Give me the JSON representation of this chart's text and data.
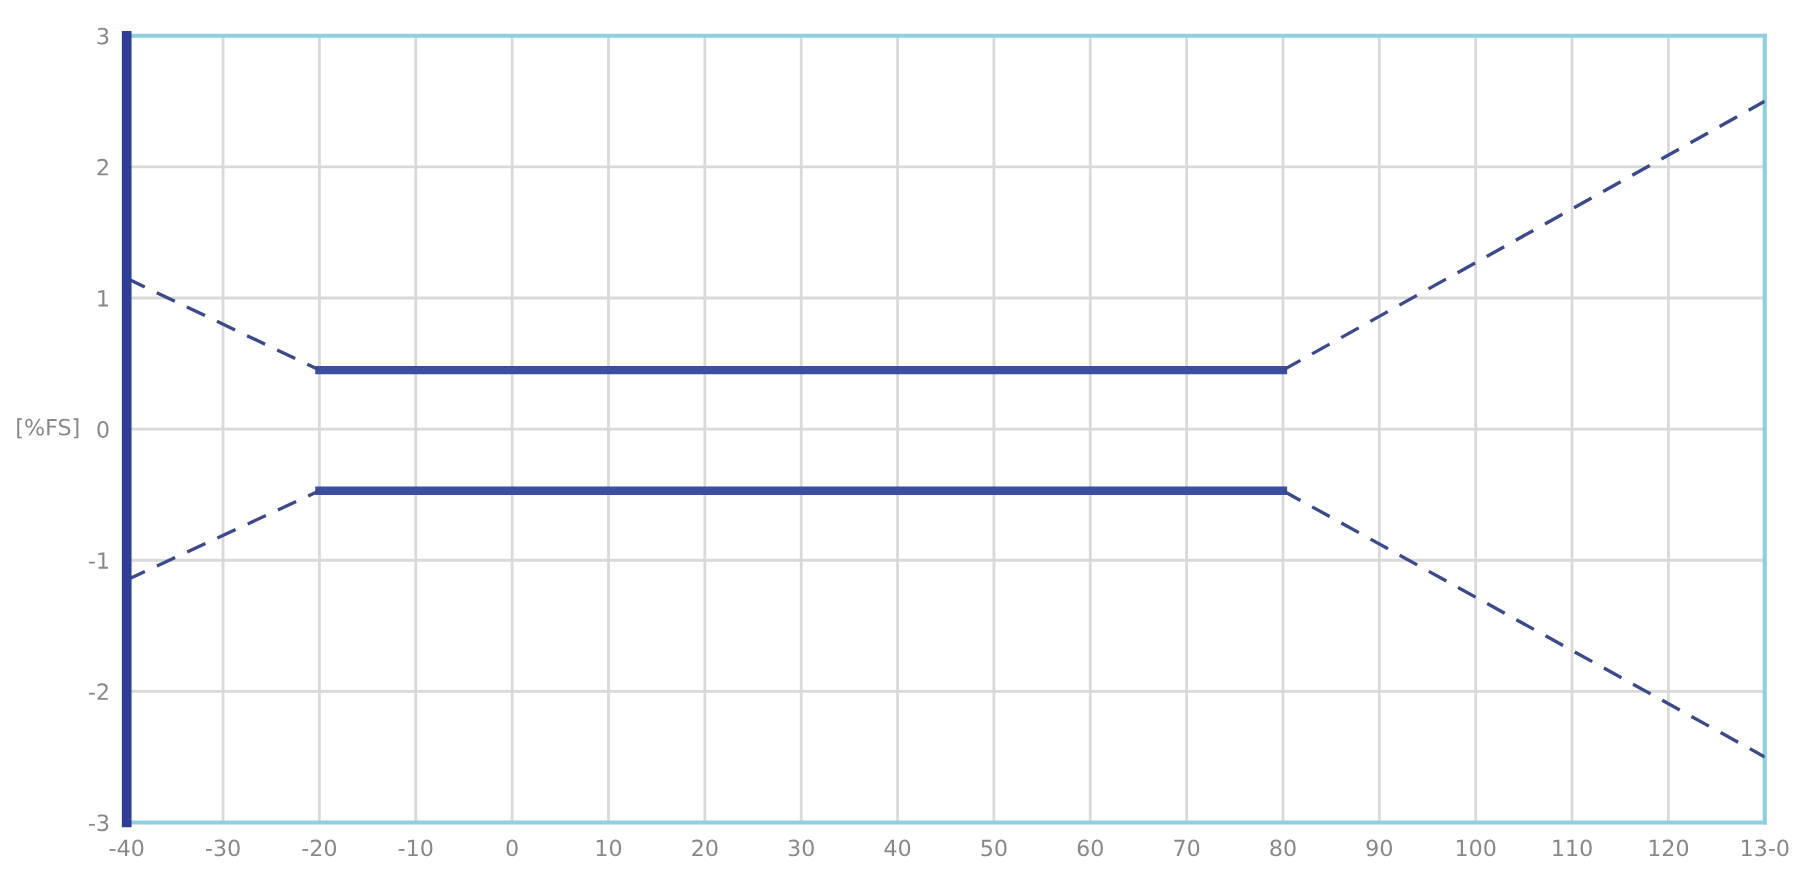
{
  "chart_data": {
    "type": "line",
    "ylabel": "[%FS]",
    "xlim": [
      -40,
      130
    ],
    "xticks": [
      -40,
      -30,
      -20,
      -10,
      0,
      10,
      20,
      30,
      40,
      50,
      60,
      70,
      80,
      90,
      100,
      110,
      120,
      {
        "value": 130,
        "label": "13-0"
      }
    ],
    "ylim": [
      -3,
      3
    ],
    "yticks": [
      -3,
      -2,
      -1,
      0,
      1,
      2,
      3
    ],
    "grid": true,
    "marker": "none",
    "ref_lines": [
      {
        "axis": "x",
        "value": -40,
        "color": "#2f3f96",
        "line_style": "solid"
      }
    ],
    "series": [
      {
        "x": [
          -20,
          80
        ],
        "values": [
          0.45,
          0.45
        ],
        "color": "#3b4ea0",
        "line_style": "solid"
      },
      {
        "x": [
          -20,
          80
        ],
        "values": [
          -0.47,
          -0.47
        ],
        "color": "#3b4ea0",
        "line_style": "solid"
      },
      {
        "x": [
          -40,
          -20
        ],
        "values": [
          1.15,
          0.45
        ],
        "color": "#3a4a8c",
        "line_style": "dashed"
      },
      {
        "x": [
          -40,
          -20
        ],
        "values": [
          -1.15,
          -0.47
        ],
        "color": "#3a4a8c",
        "line_style": "dashed"
      },
      {
        "x": [
          80,
          130
        ],
        "values": [
          0.45,
          2.5
        ],
        "color": "#3a4a8c",
        "line_style": "dashed"
      },
      {
        "x": [
          80,
          130
        ],
        "values": [
          -0.47,
          -2.5
        ],
        "color": "#3a4a8c",
        "line_style": "dashed"
      }
    ]
  }
}
